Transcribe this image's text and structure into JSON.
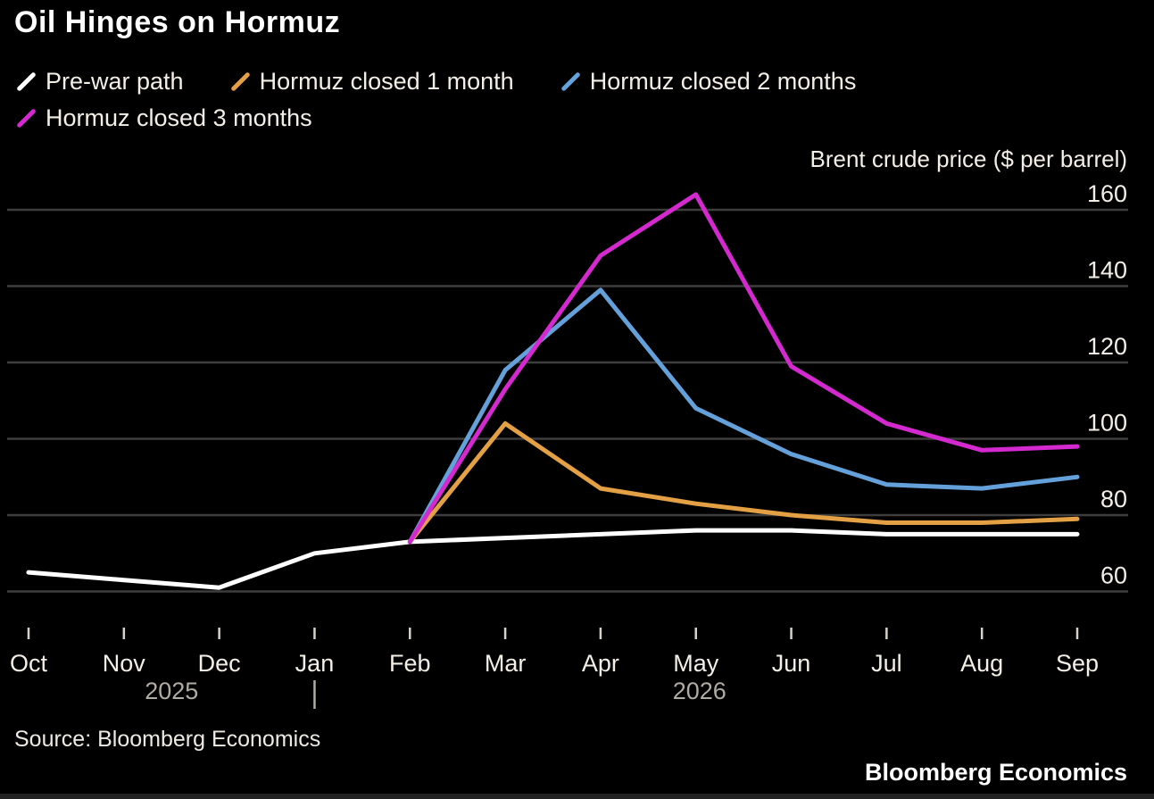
{
  "header": {
    "title": "Oil Hinges on Hormuz"
  },
  "legend": [
    {
      "label": "Pre-war path",
      "color": "#ffffff"
    },
    {
      "label": "Hormuz closed 1 month",
      "color": "#e4a044"
    },
    {
      "label": "Hormuz closed 2 months",
      "color": "#64a1da"
    },
    {
      "label": "Hormuz closed 3 months",
      "color": "#d429cf"
    }
  ],
  "footer": {
    "source": "Source: Bloomberg Economics",
    "brand": "Bloomberg Economics"
  },
  "colors": {
    "background": "#000000",
    "text": "#f3efe6",
    "muted_text": "#b0aca3",
    "gridline": "#3e3e3e",
    "tick": "#d6d2c9",
    "pre_war": "#ffffff",
    "closed_1m": "#e4a044",
    "closed_2m": "#64a1da",
    "closed_3m": "#d429cf"
  },
  "chart_data": {
    "type": "line",
    "title": "Oil Hinges on Hormuz",
    "y_axis_title": "Brent crude price ($ per barrel)",
    "x": [
      "Oct",
      "Nov",
      "Dec",
      "Jan",
      "Feb",
      "Mar",
      "Apr",
      "May",
      "Jun",
      "Jul",
      "Aug",
      "Sep"
    ],
    "year_labels": [
      {
        "label": "2025",
        "between_months": [
          "Nov",
          "Dec"
        ]
      },
      {
        "label": "2026",
        "at_month": "May"
      }
    ],
    "year_separator_at_month": "Jan",
    "yticks": [
      60,
      80,
      100,
      120,
      140,
      160
    ],
    "ylim": [
      55,
      168
    ],
    "grid": true,
    "legend_position": "top",
    "series": [
      {
        "name": "Pre-war path",
        "color": "#ffffff",
        "values": [
          65,
          63,
          61,
          70,
          73,
          74,
          75,
          76,
          76,
          75,
          75,
          75
        ]
      },
      {
        "name": "Hormuz closed 1 month",
        "color": "#e4a044",
        "values": [
          null,
          null,
          null,
          null,
          73,
          104,
          87,
          83,
          80,
          78,
          78,
          79
        ]
      },
      {
        "name": "Hormuz closed 2 months",
        "color": "#64a1da",
        "values": [
          null,
          null,
          null,
          null,
          73,
          118,
          139,
          108,
          96,
          88,
          87,
          90
        ]
      },
      {
        "name": "Hormuz closed 3 months",
        "color": "#d429cf",
        "values": [
          null,
          null,
          null,
          null,
          73,
          113,
          148,
          164,
          119,
          104,
          97,
          98
        ]
      }
    ]
  }
}
